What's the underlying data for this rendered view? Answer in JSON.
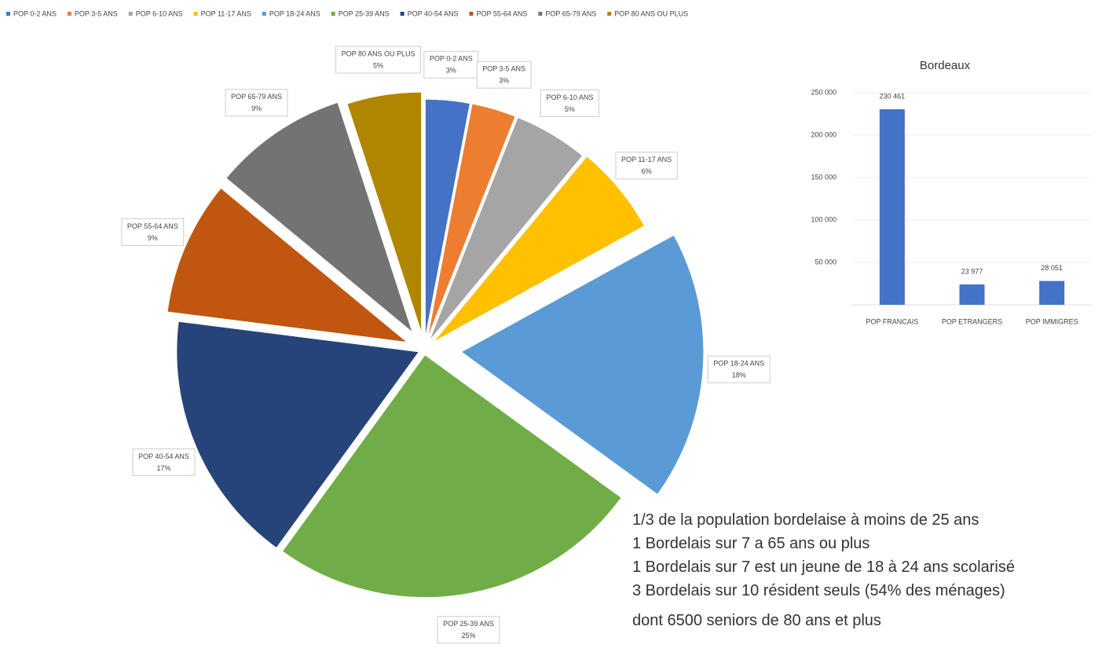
{
  "chart_data": [
    {
      "type": "pie",
      "categories": [
        "POP 0-2 ANS",
        "POP 3-5 ANS",
        "POP 6-10 ANS",
        "POP 11-17 ANS",
        "POP 18-24 ANS",
        "POP 25-39 ANS",
        "POP 40-54 ANS",
        "POP 55-64 ANS",
        "POP 65-79 ANS",
        "POP 80 ANS OU PLUS"
      ],
      "values": [
        3,
        3,
        5,
        6,
        18,
        25,
        17,
        9,
        9,
        5
      ],
      "value_labels": [
        "3%",
        "3%",
        "5%",
        "6%",
        "18%",
        "25%",
        "17%",
        "9%",
        "9%",
        "5%"
      ],
      "colors": [
        "#4472c4",
        "#ed7d31",
        "#a5a5a5",
        "#ffc000",
        "#5b9bd5",
        "#70ad47",
        "#264478",
        "#c0560f",
        "#737373",
        "#b08600"
      ],
      "legend": "top",
      "annotations": [
        "1/3 de la population bordelaise à moins de 25 ans",
        "1 Bordelais sur 7 a 65 ans ou plus",
        "1 Bordelais sur 7 est un jeune de 18 à 24 ans scolarisé",
        "3 Bordelais sur 10 résident seuls (54% des ménages)",
        "dont 6500 seniors de 80 ans et plus"
      ]
    },
    {
      "type": "bar",
      "title": "Bordeaux",
      "categories": [
        "POP FRANCAIS",
        "POP ETRANGERS",
        "POP IMMIGRES"
      ],
      "values": [
        230461,
        23977,
        28051
      ],
      "value_labels": [
        "230 461",
        "23 977",
        "28 051"
      ],
      "color": "#4472c4",
      "ylim": [
        0,
        250000
      ],
      "yticks": [
        {
          "value": 50000,
          "label": "50 000"
        },
        {
          "value": 100000,
          "label": "100 000"
        },
        {
          "value": 150000,
          "label": "150 000"
        },
        {
          "value": 200000,
          "label": "200 000"
        },
        {
          "value": 250000,
          "label": "250 000"
        }
      ],
      "grid": true
    }
  ]
}
